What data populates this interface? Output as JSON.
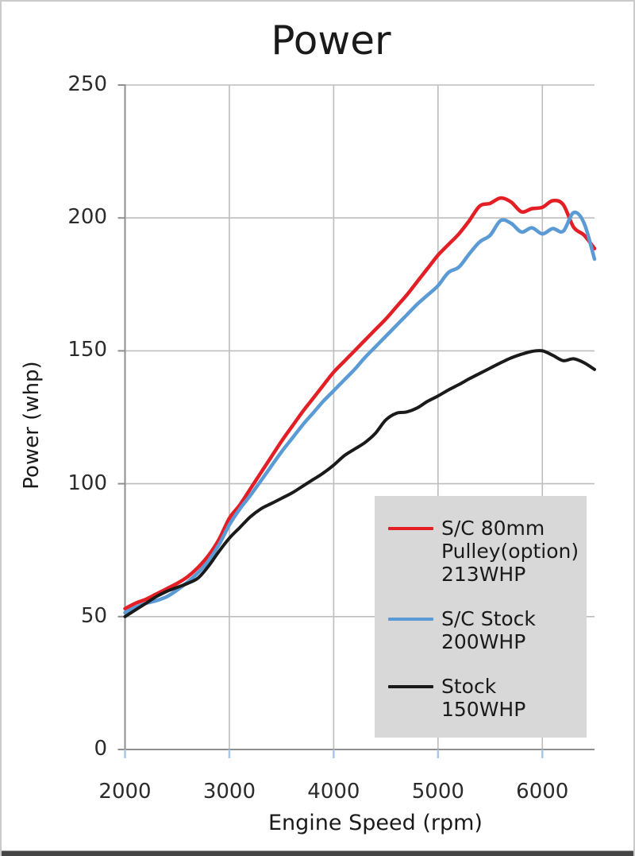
{
  "page": {
    "title": "Power",
    "x_axis_title": "Engine Speed (rpm)",
    "y_axis_title": "Power (whp)"
  },
  "legend": {
    "entries": [
      {
        "series_id": "sc-80mm-pulley",
        "lines": [
          "S/C 80mm",
          "Pulley(option)",
          "213WHP"
        ]
      },
      {
        "series_id": "sc-stock",
        "lines": [
          "S/C Stock",
          "200WHP"
        ]
      },
      {
        "series_id": "stock",
        "lines": [
          "Stock",
          "150WHP"
        ]
      }
    ]
  },
  "chart_data": {
    "type": "line",
    "title": "Power",
    "xlabel": "Engine Speed (rpm)",
    "ylabel": "Power (whp)",
    "xlim": [
      2000,
      6500
    ],
    "ylim": [
      0,
      250
    ],
    "xticks": [
      2000,
      3000,
      4000,
      5000,
      6000
    ],
    "yticks": [
      0,
      50,
      100,
      150,
      200,
      250
    ],
    "grid": true,
    "legend_position": "lower right",
    "x": [
      2000,
      2100,
      2200,
      2300,
      2400,
      2500,
      2600,
      2700,
      2800,
      2900,
      3000,
      3100,
      3200,
      3300,
      3400,
      3500,
      3600,
      3700,
      3800,
      3900,
      4000,
      4100,
      4200,
      4300,
      4400,
      4500,
      4600,
      4700,
      4800,
      4900,
      5000,
      5100,
      5200,
      5300,
      5400,
      5500,
      5600,
      5700,
      5800,
      5900,
      6000,
      6100,
      6200,
      6300,
      6400,
      6500
    ],
    "series": [
      {
        "id": "sc-80mm-pulley",
        "name": "S/C 80mm Pulley(option) 213WHP",
        "peak_whp": 213,
        "color": "#e41e25",
        "stroke_width": 4.5,
        "values": [
          53,
          55,
          56.5,
          58.5,
          60.5,
          62.5,
          65,
          68.5,
          73,
          79,
          87,
          92,
          98,
          104,
          110,
          116,
          121.5,
          127,
          132,
          137,
          142,
          146,
          150,
          154,
          158,
          162,
          166.5,
          171,
          176,
          181,
          186,
          190,
          194,
          199,
          204.5,
          205.5,
          207.5,
          206,
          202.3,
          203.5,
          204,
          206.5,
          205,
          196.5,
          193.5,
          188.5
        ]
      },
      {
        "id": "sc-stock",
        "name": "S/C Stock 200WHP",
        "peak_whp": 200,
        "color": "#5b9bd5",
        "stroke_width": 4.5,
        "values": [
          51.5,
          53.5,
          55,
          56,
          57.5,
          60,
          63,
          66.5,
          71,
          77,
          84.5,
          90.5,
          95.5,
          101,
          106.5,
          112,
          117,
          122,
          126.5,
          131,
          135,
          139,
          143,
          147.5,
          151.5,
          155.5,
          159.5,
          163.5,
          167.5,
          171,
          174.5,
          179.5,
          181.5,
          186.5,
          191,
          193.5,
          199,
          198,
          194.7,
          196.3,
          194,
          196,
          195,
          202,
          198,
          184.5
        ]
      },
      {
        "id": "stock",
        "name": "Stock 150WHP",
        "peak_whp": 150,
        "color": "#1a1a1a",
        "stroke_width": 4,
        "values": [
          50,
          52.5,
          55,
          57.5,
          59.5,
          61,
          62.5,
          64.5,
          69,
          74.5,
          79.5,
          83.5,
          87.5,
          90.5,
          92.5,
          94.5,
          96.5,
          99,
          101.5,
          104,
          107,
          110.5,
          113,
          115.5,
          119,
          124,
          126.5,
          127,
          128.5,
          131,
          133,
          135.3,
          137.3,
          139.5,
          141.5,
          143.5,
          145.5,
          147.3,
          148.7,
          149.8,
          150,
          148.3,
          146.3,
          147,
          145.5,
          143
        ]
      }
    ],
    "colors": {
      "grid": "#bdbdbd",
      "axis": "#8f8f8f",
      "x_tick": "#a9c7e5",
      "tick_text": "#2b2b2b",
      "title_text": "#1a1a1a",
      "legend_bg": "#d8d8d8",
      "frame_border": "#cbcbcb",
      "bottom_strip": "#454545",
      "background": "#ffffff"
    }
  }
}
